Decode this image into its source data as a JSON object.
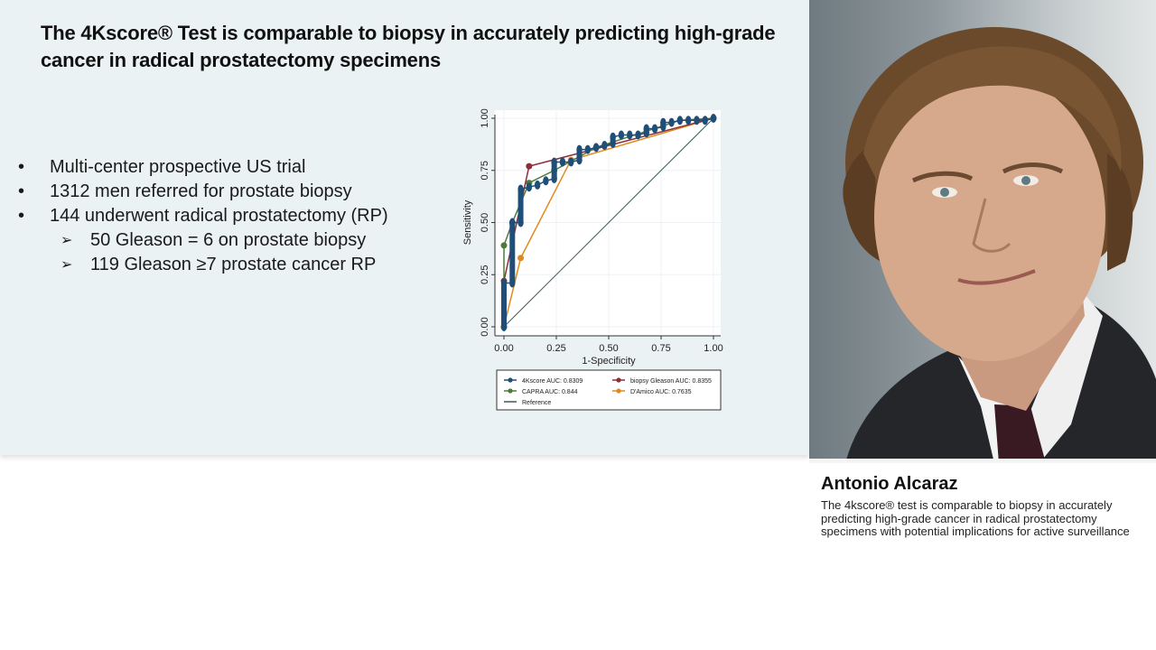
{
  "slide": {
    "title": "The 4Kscore® Test is comparable to biopsy in accurately predicting high-grade cancer in radical prostatectomy specimens",
    "bullets": [
      {
        "mark": "•",
        "text": "Multi-center prospective US trial",
        "level": 1
      },
      {
        "mark": "•",
        "text": "1312 men referred for prostate biopsy",
        "level": 1
      },
      {
        "mark": "•",
        "text": "144 underwent radical prostatectomy (RP)",
        "level": 1
      },
      {
        "mark": "➢",
        "text": "50 Gleason = 6 on prostate biopsy",
        "level": 2
      },
      {
        "mark": "➢",
        "text": "119 Gleason ≥7 prostate cancer RP",
        "level": 2
      }
    ],
    "background_color": "#eaf2f4"
  },
  "chart_data": {
    "type": "line",
    "title": "",
    "xlabel": "1-Specificity",
    "ylabel": "Sensitivity",
    "xlim": [
      0,
      1
    ],
    "ylim": [
      0,
      1
    ],
    "x_ticks": [
      "0.00",
      "0.25",
      "0.50",
      "0.75",
      "1.00"
    ],
    "y_ticks": [
      "0.00",
      "0.25",
      "0.50",
      "0.75",
      "1.00"
    ],
    "grid": true,
    "legend_position": "bottom",
    "series": [
      {
        "name": "4Kscore AUC: 0.8309",
        "color": "#1f4e79",
        "x": [
          0,
          0,
          0.04,
          0.04,
          0.08,
          0.08,
          0.12,
          0.16,
          0.2,
          0.24,
          0.24,
          0.28,
          0.32,
          0.36,
          0.36,
          0.4,
          0.44,
          0.48,
          0.52,
          0.52,
          0.56,
          0.6,
          0.64,
          0.68,
          0.68,
          0.72,
          0.76,
          0.76,
          0.8,
          0.84,
          0.88,
          0.92,
          0.96,
          1.0
        ],
        "y": [
          0,
          0.21,
          0.21,
          0.5,
          0.5,
          0.66,
          0.67,
          0.68,
          0.7,
          0.71,
          0.79,
          0.79,
          0.79,
          0.8,
          0.85,
          0.85,
          0.86,
          0.87,
          0.88,
          0.91,
          0.92,
          0.92,
          0.92,
          0.93,
          0.95,
          0.95,
          0.96,
          0.98,
          0.98,
          0.99,
          0.99,
          0.99,
          0.99,
          1.0
        ]
      },
      {
        "name": "biopsy Gleason AUC: 0.8355",
        "color": "#8b2e3c",
        "x": [
          0,
          0,
          0.12,
          1.0
        ],
        "y": [
          0,
          0.22,
          0.77,
          1.0
        ]
      },
      {
        "name": "CAPRA AUC: 0.844",
        "color": "#4e7a3a",
        "x": [
          0,
          0,
          0.04,
          0.12,
          0.24,
          0.44,
          0.84,
          1.0
        ],
        "y": [
          0,
          0.39,
          0.5,
          0.69,
          0.75,
          0.86,
          0.99,
          1.0
        ]
      },
      {
        "name": "D'Amico AUC: 0.7635",
        "color": "#e08a1e",
        "x": [
          0,
          0.08,
          0.32,
          1.0
        ],
        "y": [
          0,
          0.33,
          0.8,
          1.0
        ]
      },
      {
        "name": "Reference",
        "color": "#3d5a5a",
        "x": [
          0,
          1
        ],
        "y": [
          0,
          1
        ]
      }
    ]
  },
  "legend": {
    "items": [
      {
        "label": "4Kscore AUC: 0.8309",
        "color": "#1f4e79",
        "marker": true
      },
      {
        "label": "biopsy Gleason AUC: 0.8355",
        "color": "#8b2e3c",
        "marker": true
      },
      {
        "label": "CAPRA AUC: 0.844",
        "color": "#4e7a3a",
        "marker": true
      },
      {
        "label": "D'Amico AUC: 0.7635",
        "color": "#e08a1e",
        "marker": true
      },
      {
        "label": "Reference",
        "color": "#3d5a5a",
        "marker": false
      }
    ]
  },
  "speaker": {
    "name": "Antonio Alcaraz",
    "description": "The 4kscore® test is comparable to biopsy in accurately predicting high-grade cancer in radical prostatectomy specimens with potential implications for active surveillance",
    "photo_alt": "speaker-portrait"
  }
}
